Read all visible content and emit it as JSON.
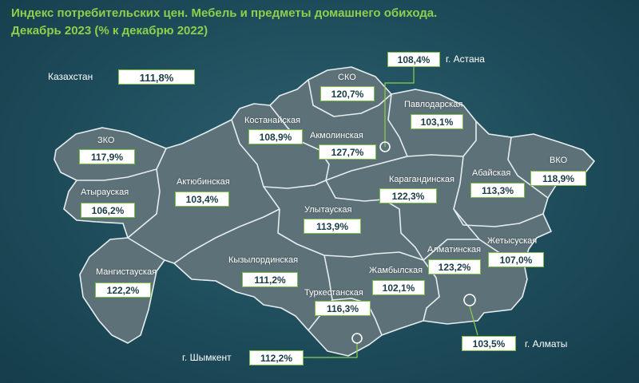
{
  "title": {
    "line1": "Индекс потребительских цен. Мебель и предметы домашнего обихода.",
    "line2": "Декабрь 2023 (% к декабрю 2022)"
  },
  "country": {
    "label": "Казахстан",
    "value": "111,8%"
  },
  "regions": [
    {
      "id": "zko",
      "label": "ЗКО",
      "value": "117,9%"
    },
    {
      "id": "atyrau",
      "label": "Атырауская",
      "value": "106,2%"
    },
    {
      "id": "mangistau",
      "label": "Мангистауская",
      "value": "122,2%"
    },
    {
      "id": "aktobe",
      "label": "Актюбинская",
      "value": "103,4%"
    },
    {
      "id": "kostanay",
      "label": "Костанайская",
      "value": "108,9%"
    },
    {
      "id": "sko",
      "label": "СКО",
      "value": "120,7%"
    },
    {
      "id": "akmola",
      "label": "Акмолинская",
      "value": "127,7%"
    },
    {
      "id": "pavlodar",
      "label": "Павлодарская",
      "value": "103,1%"
    },
    {
      "id": "karaganda",
      "label": "Карагандинская",
      "value": "122,3%"
    },
    {
      "id": "abay",
      "label": "Абайская",
      "value": "113,3%"
    },
    {
      "id": "vko",
      "label": "ВКО",
      "value": "118,9%"
    },
    {
      "id": "ulytau",
      "label": "Улытауская",
      "value": "113,9%"
    },
    {
      "id": "kyzylorda",
      "label": "Кызылординская",
      "value": "111,2%"
    },
    {
      "id": "turkestan",
      "label": "Туркестанская",
      "value": "116,3%"
    },
    {
      "id": "zhambyl",
      "label": "Жамбылская",
      "value": "102,1%"
    },
    {
      "id": "almaty_reg",
      "label": "Алматинская",
      "value": "123,2%"
    },
    {
      "id": "zhetisu",
      "label": "Жетысуская",
      "value": "107,0%"
    }
  ],
  "cities": [
    {
      "id": "astana",
      "label": "г. Астана",
      "value": "108,4%"
    },
    {
      "id": "almaty",
      "label": "г. Алматы",
      "value": "103,5%"
    },
    {
      "id": "shymkent",
      "label": "г. Шымкент",
      "value": "112,2%"
    }
  ],
  "colors": {
    "title": "#8ed04a",
    "box_border": "#7bc043",
    "region_fill": "#5d7178",
    "background": "#1e4c5b"
  }
}
